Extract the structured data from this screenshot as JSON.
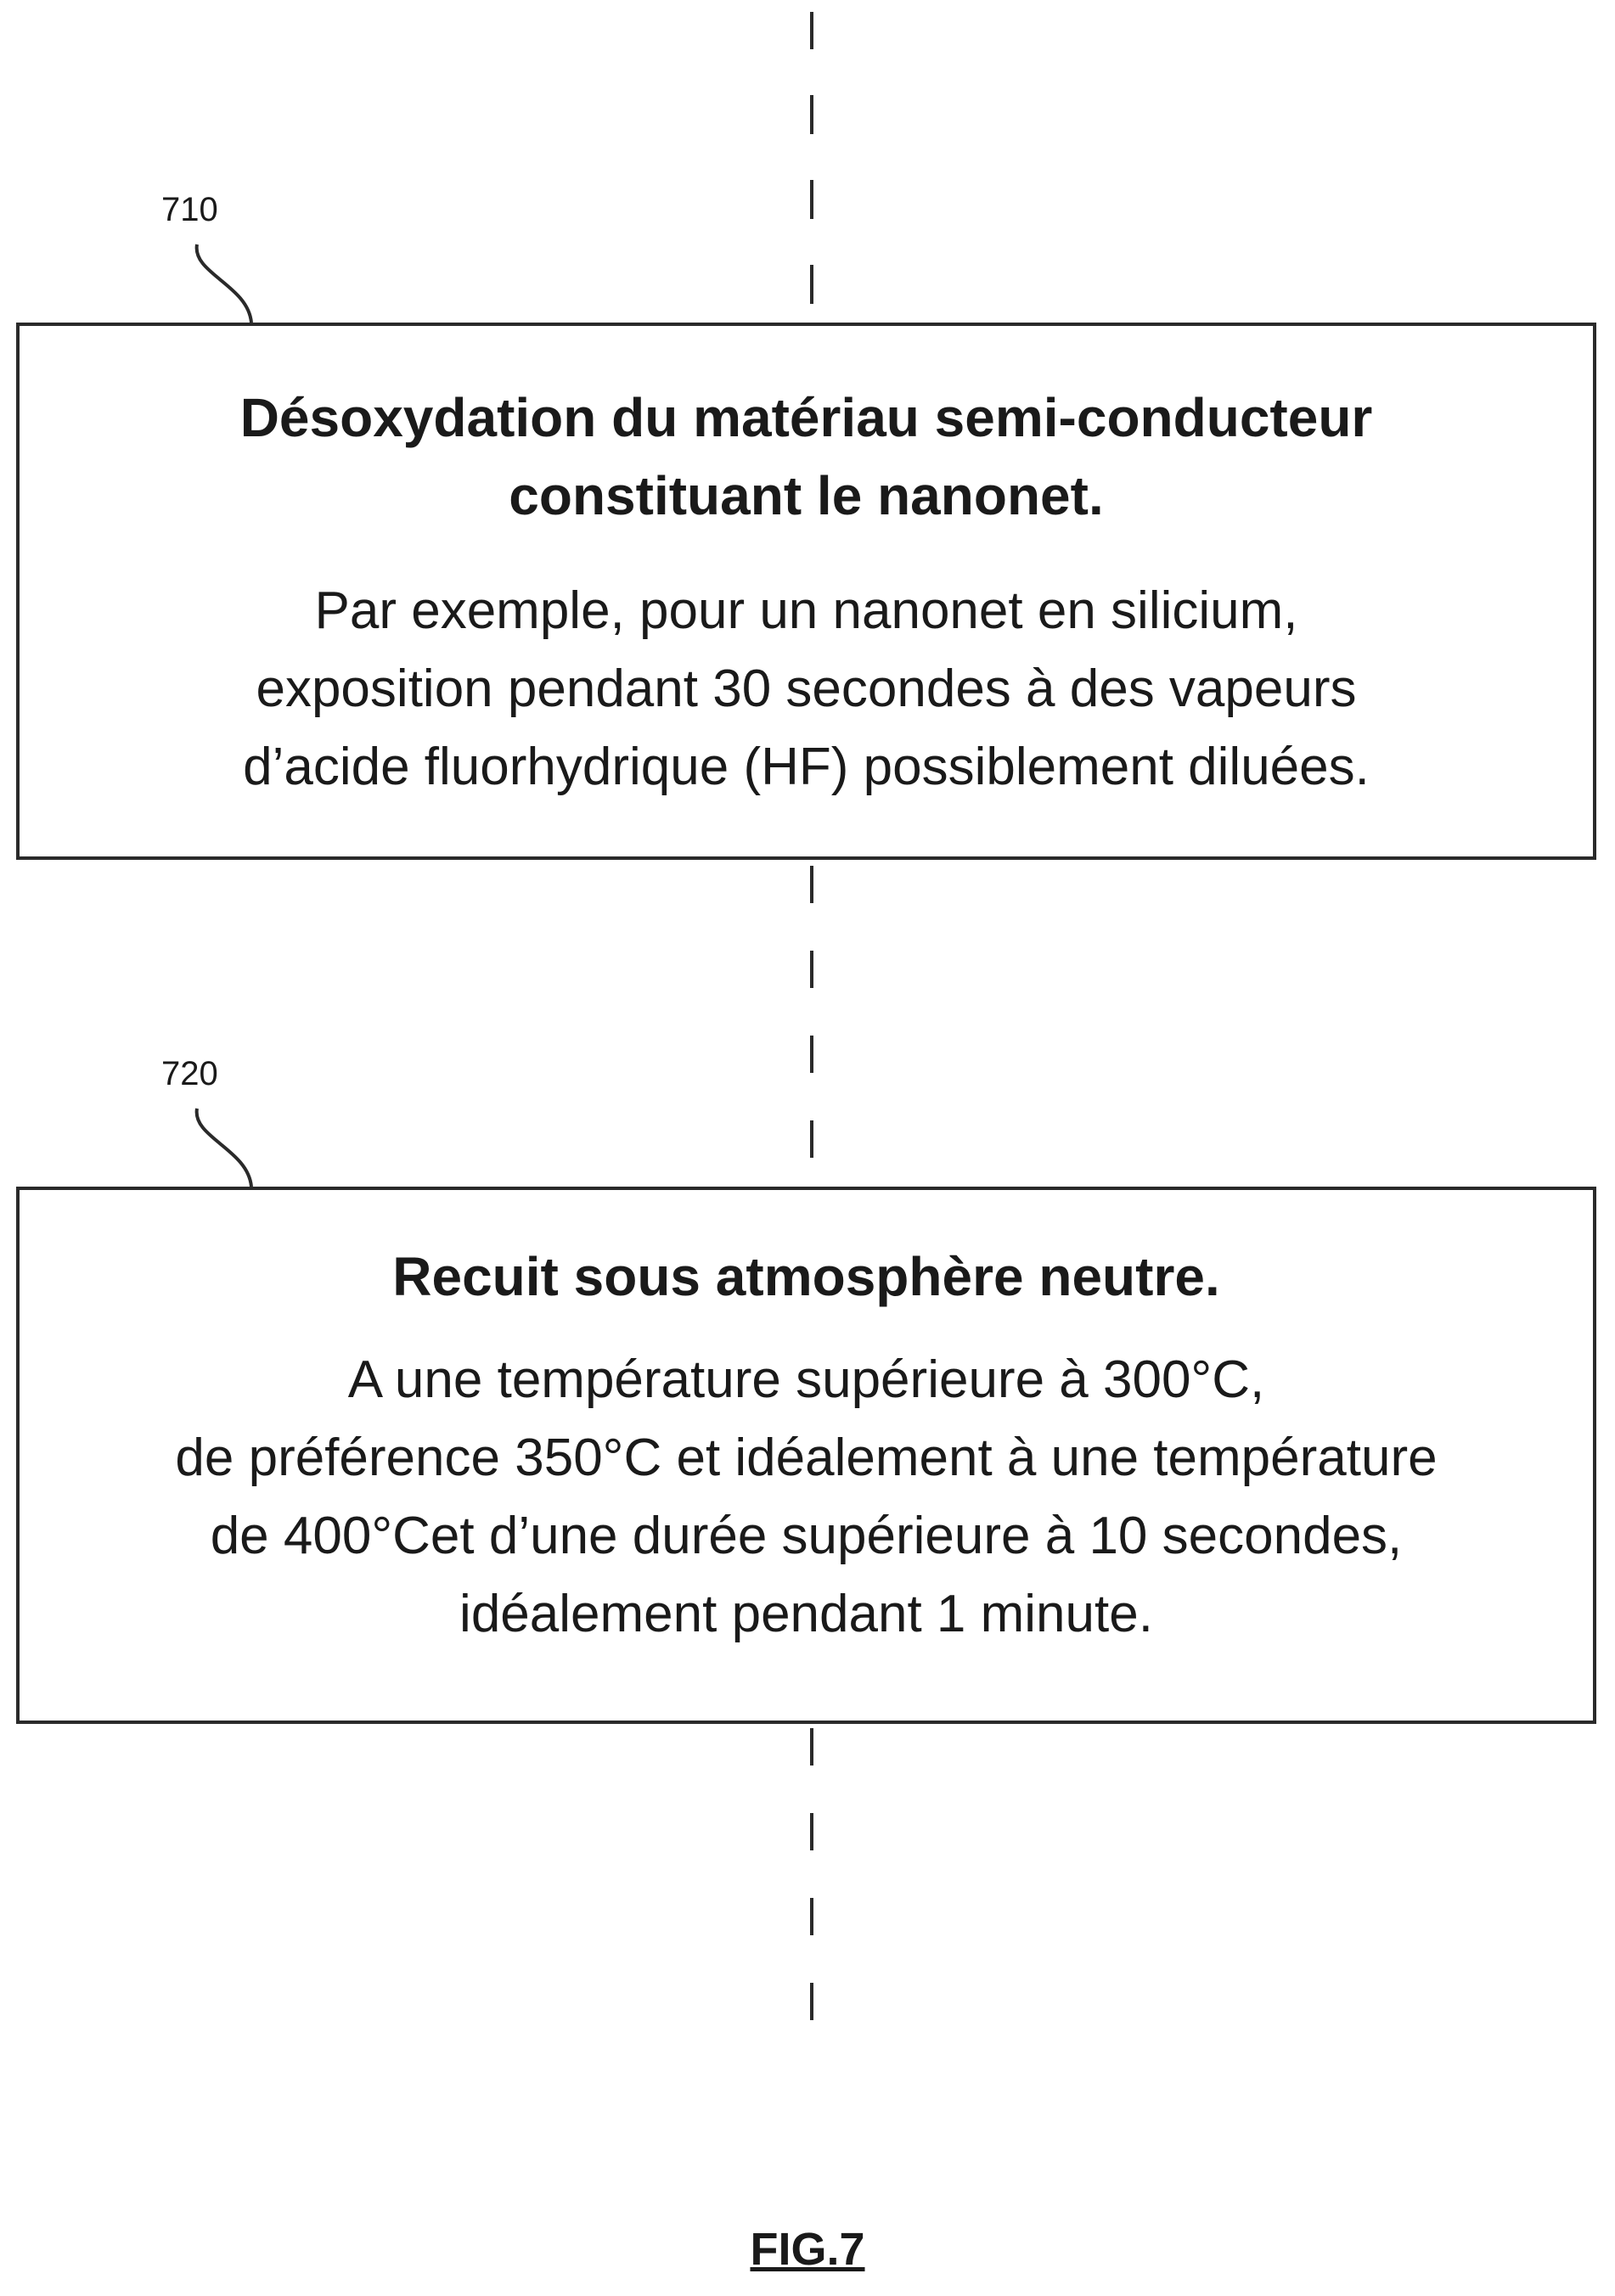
{
  "steps": [
    {
      "ref": "710",
      "title_lines": [
        "Désoxydation du matériau semi-conducteur",
        "constituant le nanonet."
      ],
      "body_lines": [
        "Par exemple, pour un nanonet en silicium,",
        "exposition pendant 30 secondes à des vapeurs",
        "d’acide fluorhydrique (HF) possiblement diluées."
      ]
    },
    {
      "ref": "720",
      "title_lines": [
        "Recuit sous atmosphère neutre."
      ],
      "body_lines": [
        "A une température supérieure à 300°C,",
        "de préférence 350°C et idéalement à une température",
        "de 400°Cet d’une durée supérieure à 10 secondes,",
        "idéalement pendant 1 minute."
      ]
    }
  ],
  "figure_label": "FIG.7"
}
